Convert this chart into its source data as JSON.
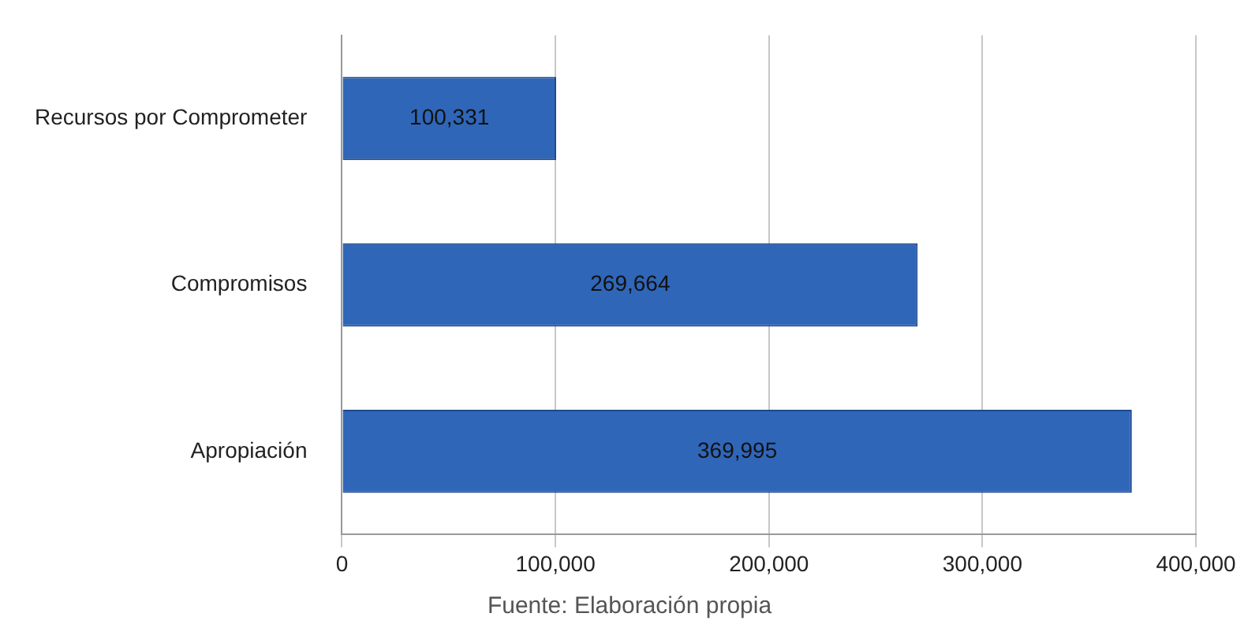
{
  "chart_data": {
    "type": "bar",
    "orientation": "horizontal",
    "categories": [
      "Recursos por Comprometer",
      "Compromisos",
      "Apropiación"
    ],
    "values": [
      100331,
      269664,
      369995
    ],
    "value_labels": [
      "100,331",
      "269,664",
      "369,995"
    ],
    "color": "#2f66b8",
    "xlim": [
      0,
      400000
    ],
    "xticks": [
      0,
      {
        "value": 100000,
        "label": "100,000"
      },
      {
        "value": 200000,
        "label": "200,000"
      },
      {
        "value": 300000,
        "label": "300,000"
      },
      {
        "value": 400000,
        "label": "400,000"
      }
    ],
    "grid": "x",
    "annotations": [
      "Fuente: Elaboración propia"
    ]
  }
}
